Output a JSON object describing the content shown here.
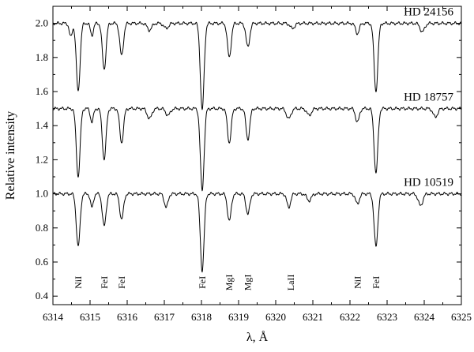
{
  "chart_data": {
    "type": "line",
    "xlabel": "λ, Å",
    "ylabel": "Relative intensity",
    "xlim": [
      6314,
      6325
    ],
    "ylim": [
      0.35,
      2.1
    ],
    "xticks": [
      6314,
      6315,
      6316,
      6317,
      6318,
      6319,
      6320,
      6321,
      6322,
      6323,
      6324,
      6325
    ],
    "yticks": [
      0.4,
      0.6,
      0.8,
      1.0,
      1.2,
      1.4,
      1.6,
      1.8,
      2.0
    ],
    "ytick_labels": [
      "0.4",
      "0.6",
      "0.8",
      "1.0",
      "1.2",
      "1.4",
      "1.6",
      "1.8",
      "2.0"
    ],
    "grid": false,
    "series": [
      {
        "name": "HD 24156",
        "continuum": 2.0,
        "lines": [
          {
            "x": 6314.48,
            "depth": 0.08,
            "width": 0.04
          },
          {
            "x": 6314.68,
            "depth": 0.4,
            "width": 0.05
          },
          {
            "x": 6315.05,
            "depth": 0.07,
            "width": 0.04
          },
          {
            "x": 6315.38,
            "depth": 0.27,
            "width": 0.05
          },
          {
            "x": 6315.85,
            "depth": 0.19,
            "width": 0.05
          },
          {
            "x": 6316.6,
            "depth": 0.04,
            "width": 0.06
          },
          {
            "x": 6317.05,
            "depth": 0.03,
            "width": 0.06
          },
          {
            "x": 6318.02,
            "depth": 0.51,
            "width": 0.05
          },
          {
            "x": 6318.75,
            "depth": 0.2,
            "width": 0.05
          },
          {
            "x": 6319.25,
            "depth": 0.14,
            "width": 0.05
          },
          {
            "x": 6320.45,
            "depth": 0.03,
            "width": 0.06
          },
          {
            "x": 6322.2,
            "depth": 0.06,
            "width": 0.05
          },
          {
            "x": 6322.7,
            "depth": 0.4,
            "width": 0.05
          },
          {
            "x": 6323.95,
            "depth": 0.05,
            "width": 0.06
          }
        ]
      },
      {
        "name": "HD 18757",
        "continuum": 1.5,
        "lines": [
          {
            "x": 6314.68,
            "depth": 0.4,
            "width": 0.05
          },
          {
            "x": 6315.05,
            "depth": 0.08,
            "width": 0.04
          },
          {
            "x": 6315.38,
            "depth": 0.3,
            "width": 0.05
          },
          {
            "x": 6315.85,
            "depth": 0.2,
            "width": 0.05
          },
          {
            "x": 6316.6,
            "depth": 0.06,
            "width": 0.06
          },
          {
            "x": 6317.1,
            "depth": 0.04,
            "width": 0.06
          },
          {
            "x": 6318.02,
            "depth": 0.48,
            "width": 0.05
          },
          {
            "x": 6318.75,
            "depth": 0.2,
            "width": 0.05
          },
          {
            "x": 6319.25,
            "depth": 0.18,
            "width": 0.05
          },
          {
            "x": 6320.35,
            "depth": 0.06,
            "width": 0.06
          },
          {
            "x": 6320.9,
            "depth": 0.04,
            "width": 0.06
          },
          {
            "x": 6322.2,
            "depth": 0.08,
            "width": 0.05
          },
          {
            "x": 6322.7,
            "depth": 0.38,
            "width": 0.05
          },
          {
            "x": 6324.3,
            "depth": 0.05,
            "width": 0.06
          }
        ]
      },
      {
        "name": "HD 10519",
        "continuum": 1.0,
        "lines": [
          {
            "x": 6314.68,
            "depth": 0.31,
            "width": 0.05
          },
          {
            "x": 6315.05,
            "depth": 0.08,
            "width": 0.04
          },
          {
            "x": 6315.38,
            "depth": 0.19,
            "width": 0.05
          },
          {
            "x": 6315.85,
            "depth": 0.15,
            "width": 0.05
          },
          {
            "x": 6317.05,
            "depth": 0.08,
            "width": 0.05
          },
          {
            "x": 6318.02,
            "depth": 0.45,
            "width": 0.05
          },
          {
            "x": 6318.75,
            "depth": 0.16,
            "width": 0.05
          },
          {
            "x": 6319.25,
            "depth": 0.12,
            "width": 0.05
          },
          {
            "x": 6320.35,
            "depth": 0.08,
            "width": 0.05
          },
          {
            "x": 6320.9,
            "depth": 0.04,
            "width": 0.06
          },
          {
            "x": 6322.2,
            "depth": 0.06,
            "width": 0.05
          },
          {
            "x": 6322.7,
            "depth": 0.31,
            "width": 0.05
          },
          {
            "x": 6323.9,
            "depth": 0.07,
            "width": 0.06
          }
        ]
      }
    ],
    "line_labels": [
      {
        "text": "NiI",
        "x": 6314.68
      },
      {
        "text": "FeI",
        "x": 6315.38
      },
      {
        "text": "FeI",
        "x": 6315.85
      },
      {
        "text": "FeI",
        "x": 6318.02
      },
      {
        "text": "MgI",
        "x": 6318.75
      },
      {
        "text": "MgI",
        "x": 6319.25
      },
      {
        "text": "LaII",
        "x": 6320.4
      },
      {
        "text": "NiI",
        "x": 6322.2
      },
      {
        "text": "FeI",
        "x": 6322.7
      }
    ],
    "line_label_y": 0.48
  }
}
